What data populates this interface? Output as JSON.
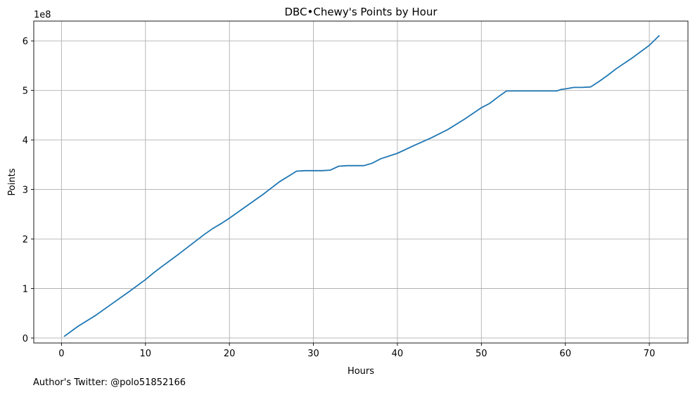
{
  "chart_data": {
    "type": "line",
    "title": "DBC•Chewy's Points by Hour",
    "xlabel": "Hours",
    "ylabel": "Points",
    "y_offset_label": "1e8",
    "xlim": [
      -3.3,
      74.6
    ],
    "ylim": [
      -10,
      640
    ],
    "y_unit_multiplier": 100000000,
    "x_ticks": [
      0,
      10,
      20,
      30,
      40,
      50,
      60,
      70
    ],
    "y_ticks": [
      0,
      100,
      200,
      300,
      400,
      500,
      600
    ],
    "x_tick_labels": [
      "0",
      "10",
      "20",
      "30",
      "40",
      "50",
      "60",
      "70"
    ],
    "y_tick_labels": [
      "0",
      "1",
      "2",
      "3",
      "4",
      "5",
      "6"
    ],
    "grid": true,
    "line_color": "#1f77b4",
    "series": [
      {
        "x": [
          0.3,
          2,
          4,
          6,
          8,
          10,
          11,
          12,
          14,
          16,
          17,
          18,
          19,
          20,
          22,
          24,
          26,
          28,
          29,
          30,
          31,
          32,
          33,
          34,
          35,
          36,
          37,
          38,
          40,
          42,
          44,
          46,
          48,
          50,
          51,
          52,
          53,
          54,
          56,
          59,
          59.5,
          60,
          61,
          62,
          63,
          64,
          65,
          66,
          68,
          70,
          71.2
        ],
        "y": [
          3,
          24,
          45,
          69,
          93,
          118,
          132,
          145,
          170,
          196,
          209,
          221,
          231,
          242,
          266,
          290,
          316,
          337,
          338,
          338,
          338,
          339,
          347,
          348,
          348,
          348,
          353,
          362,
          373,
          389,
          404,
          421,
          442,
          465,
          474,
          487,
          499,
          499,
          499,
          499,
          502,
          503,
          506,
          506,
          507,
          518,
          530,
          543,
          566,
          591,
          611
        ]
      }
    ]
  },
  "footer": {
    "twitter_note": "Author's Twitter: @polo51852166"
  }
}
